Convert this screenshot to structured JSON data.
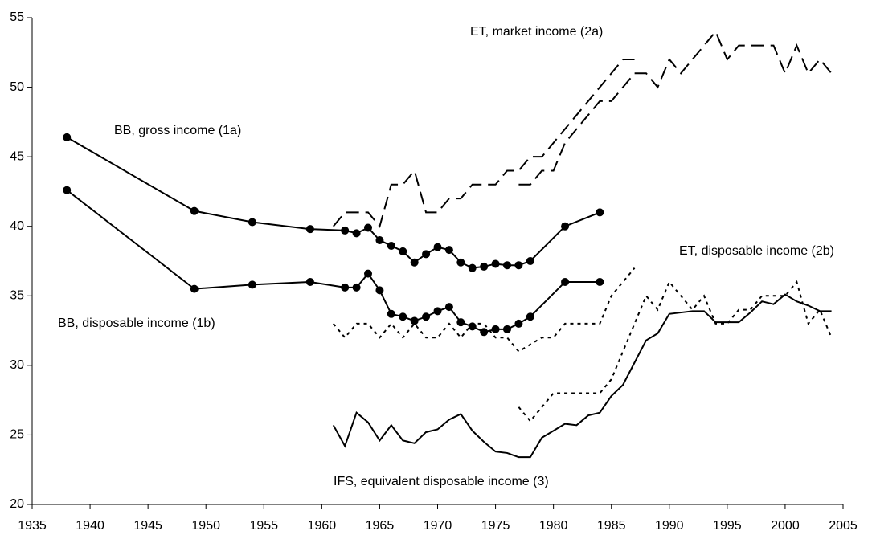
{
  "chart_data": {
    "type": "line",
    "xlim": [
      1935,
      2005
    ],
    "xticks": [
      1935,
      1940,
      1945,
      1950,
      1955,
      1960,
      1965,
      1970,
      1975,
      1980,
      1985,
      1990,
      1995,
      2000,
      2005
    ],
    "ylim": [
      20,
      55
    ],
    "yticks": [
      20,
      25,
      30,
      35,
      40,
      45,
      50,
      55
    ],
    "annotations": [
      "ET, market income (2a)",
      "BB, gross income (1a)",
      "ET, disposable income (2b)",
      "BB, disposable income (1b)",
      "IFS, equivalent disposable income (3)"
    ],
    "series": [
      {
        "color": "#000",
        "dash": "solid",
        "markers": true,
        "x": [
          1938,
          1949,
          1954,
          1959,
          1962,
          1963,
          1964,
          1965,
          1966,
          1967,
          1968,
          1969,
          1970,
          1971,
          1972,
          1973,
          1974,
          1975,
          1976,
          1977,
          1978,
          1981,
          1984
        ],
        "values": [
          46.4,
          41.1,
          40.3,
          39.8,
          39.7,
          39.5,
          39.9,
          39.0,
          38.6,
          38.2,
          37.4,
          38.0,
          38.5,
          38.3,
          37.4,
          37.0,
          37.1,
          37.3,
          37.2,
          37.2,
          37.5,
          40.0,
          41.0
        ]
      },
      {
        "color": "#000",
        "dash": "solid",
        "markers": true,
        "x": [
          1938,
          1949,
          1954,
          1959,
          1962,
          1963,
          1964,
          1965,
          1966,
          1967,
          1968,
          1969,
          1970,
          1971,
          1972,
          1973,
          1974,
          1975,
          1976,
          1977,
          1978,
          1981,
          1984
        ],
        "values": [
          42.6,
          35.5,
          35.8,
          36.0,
          35.6,
          35.6,
          36.6,
          35.4,
          33.7,
          33.5,
          33.2,
          33.5,
          33.9,
          34.2,
          33.1,
          32.8,
          32.4,
          32.6,
          32.6,
          33.0,
          33.5,
          36.0,
          36.0
        ]
      },
      {
        "color": "#000",
        "dash": "dashed",
        "markers": false,
        "x": [
          1961,
          1962,
          1963,
          1964,
          1965,
          1966,
          1967,
          1968,
          1969,
          1970,
          1971,
          1972,
          1973,
          1974,
          1975,
          1976,
          1977,
          1978,
          1979,
          1980,
          1981,
          1982,
          1983,
          1984,
          1985,
          1986,
          1987
        ],
        "values": [
          40,
          41,
          41,
          41,
          40,
          43,
          43,
          44,
          41,
          41,
          42,
          42,
          43,
          43,
          43,
          44,
          44,
          45,
          45,
          46,
          47,
          48,
          49,
          50,
          51,
          52,
          52
        ]
      },
      {
        "color": "#000",
        "dash": "dashed",
        "markers": false,
        "x": [
          1977,
          1978,
          1979,
          1980,
          1981,
          1982,
          1983,
          1984,
          1985,
          1986,
          1987,
          1988,
          1989,
          1990,
          1991,
          1992,
          1993,
          1994,
          1995,
          1996,
          1997,
          1998,
          1999,
          2000,
          2001,
          2002,
          2003,
          2004
        ],
        "values": [
          43,
          43,
          44,
          44,
          46,
          47,
          48,
          49,
          49,
          50,
          51,
          51,
          50,
          52,
          51,
          52,
          53,
          54,
          52,
          53,
          53,
          53,
          53,
          51,
          53,
          51,
          52,
          51
        ]
      },
      {
        "color": "#000",
        "dash": "dotted",
        "markers": false,
        "x": [
          1961,
          1962,
          1963,
          1964,
          1965,
          1966,
          1967,
          1968,
          1969,
          1970,
          1971,
          1972,
          1973,
          1974,
          1975,
          1976,
          1977,
          1978,
          1979,
          1980,
          1981,
          1982,
          1983,
          1984,
          1985,
          1986,
          1987
        ],
        "values": [
          33,
          32,
          33,
          33,
          32,
          33,
          32,
          33,
          32,
          32,
          33,
          32,
          33,
          33,
          32,
          32,
          31,
          31.5,
          32,
          32,
          33,
          33,
          33,
          33,
          35,
          36,
          37
        ]
      },
      {
        "color": "#000",
        "dash": "dotted",
        "markers": false,
        "x": [
          1977,
          1978,
          1979,
          1980,
          1981,
          1982,
          1983,
          1984,
          1985,
          1986,
          1987,
          1988,
          1989,
          1990,
          1991,
          1992,
          1993,
          1994,
          1995,
          1996,
          1997,
          1998,
          1999,
          2000,
          2001,
          2002,
          2003,
          2004
        ],
        "values": [
          27,
          26,
          27,
          28,
          28,
          28,
          28,
          28,
          29,
          31,
          33,
          35,
          34,
          36,
          35,
          34,
          35,
          33,
          33,
          34,
          34,
          35,
          35,
          35,
          36,
          33,
          34,
          32
        ]
      },
      {
        "color": "#000",
        "dash": "solid",
        "markers": false,
        "x": [
          1961,
          1962,
          1963,
          1964,
          1965,
          1966,
          1967,
          1968,
          1969,
          1970,
          1971,
          1972,
          1973,
          1974,
          1975,
          1976,
          1977,
          1978,
          1979,
          1980,
          1981,
          1982,
          1983,
          1984,
          1985,
          1986,
          1987,
          1988,
          1989,
          1990,
          1991,
          1992,
          1993,
          1994,
          1995,
          1996,
          1997,
          1998,
          1999,
          2000,
          2001,
          2002,
          2003,
          2004
        ],
        "values": [
          25.7,
          24.2,
          26.6,
          25.9,
          24.6,
          25.7,
          24.6,
          24.4,
          25.2,
          25.4,
          26.1,
          26.5,
          25.3,
          24.5,
          23.8,
          23.7,
          23.4,
          23.4,
          24.8,
          25.3,
          25.8,
          25.7,
          26.4,
          26.6,
          27.8,
          28.6,
          30.2,
          31.8,
          32.3,
          33.7,
          33.8,
          33.9,
          33.9,
          33.1,
          33.1,
          33.1,
          33.8,
          34.6,
          34.4,
          35.1,
          34.6,
          34.3,
          33.9,
          33.9
        ]
      }
    ]
  }
}
